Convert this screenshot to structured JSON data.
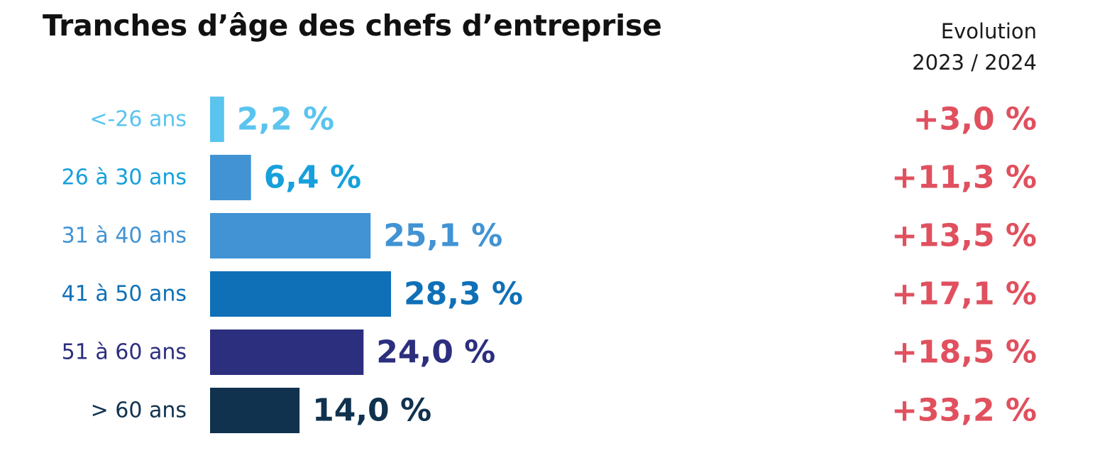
{
  "chart_data": {
    "type": "bar",
    "orientation": "horizontal",
    "title": "Tranches d’âge des chefs d’entreprise",
    "evolution_header": [
      "Evolution",
      "2023 / 2024"
    ],
    "categories": [
      "<-26 ans",
      "26 à 30 ans",
      "31 à 40 ans",
      "41 à 50 ans",
      "51 à 60 ans",
      "> 60 ans"
    ],
    "values": [
      2.2,
      6.4,
      25.1,
      28.3,
      24.0,
      14.0
    ],
    "value_labels": [
      "2,2 %",
      "6,4 %",
      "25,1 %",
      "28,3 %",
      "24,0 %",
      "14,0 %"
    ],
    "evolution": [
      3.0,
      11.3,
      13.5,
      17.1,
      18.5,
      33.2
    ],
    "evolution_labels": [
      "+3,0 %",
      "+11,3 %",
      "+13,5 %",
      "+17,1 %",
      "+18,5 %",
      "+33,2 %"
    ],
    "colors": [
      "#5bc4ee",
      "#4193d3",
      "#4193d3",
      "#0f70b7",
      "#2c2e7e",
      "#10324f"
    ],
    "label_colors": [
      "#5bc4ee",
      "#16a0dc",
      "#4193d3",
      "#0f70b7",
      "#2c2e7e",
      "#10324f"
    ],
    "evolution_color": "#e0505e",
    "xlim": [
      0,
      28.3
    ],
    "grid": false,
    "legend": "none"
  }
}
